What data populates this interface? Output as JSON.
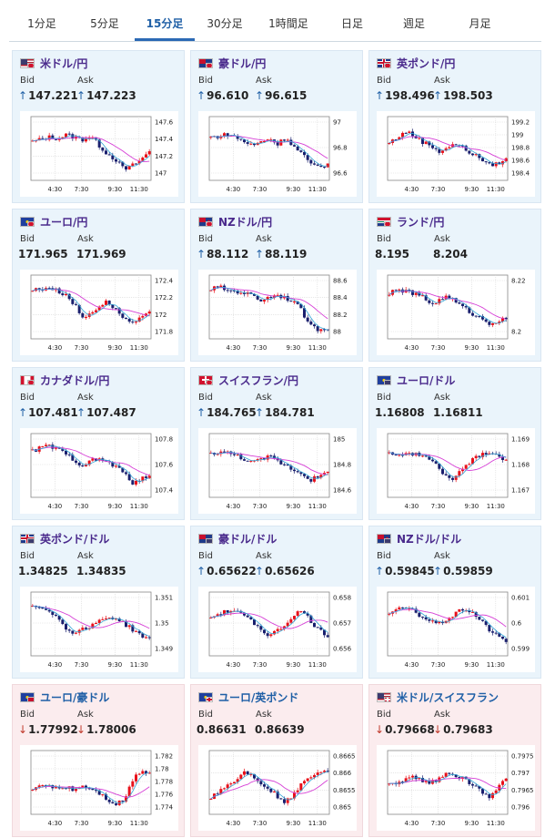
{
  "tabs": [
    {
      "label": "1分足",
      "active": false
    },
    {
      "label": "5分足",
      "active": false
    },
    {
      "label": "15分足",
      "active": true
    },
    {
      "label": "30分足",
      "active": false
    },
    {
      "label": "1時間足",
      "active": false
    },
    {
      "label": "日足",
      "active": false
    },
    {
      "label": "週足",
      "active": false
    },
    {
      "label": "月足",
      "active": false
    }
  ],
  "labels": {
    "bid": "Bid",
    "ask": "Ask"
  },
  "colors": {
    "up_candle": "#e8101a",
    "down_candle": "#1a1f6e",
    "moving_average": "#d63fd6",
    "short_average": "#33a6d6",
    "up_arrow": "#1f5fa6",
    "down_arrow": "#c0392b"
  },
  "pairs": [
    {
      "name": "米ドル/円",
      "flags": [
        "us",
        "jp"
      ],
      "bid": "147.221",
      "ask": "147.223",
      "bid_dir": "up",
      "ask_dir": "up",
      "y_ticks": [
        "147.6",
        "147.4",
        "147.2",
        "147"
      ],
      "x_ticks": [
        "4:30",
        "7:30",
        "9:30",
        "11:30"
      ],
      "trend": [
        0.62,
        0.66,
        0.7,
        0.68,
        0.74,
        0.7,
        0.66,
        0.72,
        0.55,
        0.4,
        0.3,
        0.12,
        0.2,
        0.3,
        0.45
      ]
    },
    {
      "name": "豪ドル/円",
      "flags": [
        "au",
        "jp"
      ],
      "bid": "96.610",
      "ask": "96.615",
      "bid_dir": "up",
      "ask_dir": "up",
      "y_ticks": [
        "97",
        "96.8",
        "96.6"
      ],
      "x_ticks": [
        "4:30",
        "7:30",
        "9:30",
        "11:30"
      ],
      "trend": [
        0.7,
        0.72,
        0.75,
        0.7,
        0.62,
        0.55,
        0.62,
        0.68,
        0.58,
        0.7,
        0.52,
        0.4,
        0.2,
        0.18,
        0.22
      ]
    },
    {
      "name": "英ポンド/円",
      "flags": [
        "uk",
        "jp"
      ],
      "bid": "198.496",
      "ask": "198.503",
      "bid_dir": "up",
      "ask_dir": "up",
      "y_ticks": [
        "199.2",
        "199",
        "198.8",
        "198.6",
        "198.4"
      ],
      "x_ticks": [
        "4:30",
        "7:30",
        "9:30",
        "11:30"
      ],
      "trend": [
        0.6,
        0.7,
        0.8,
        0.72,
        0.62,
        0.55,
        0.45,
        0.52,
        0.58,
        0.5,
        0.4,
        0.32,
        0.2,
        0.24,
        0.3
      ]
    },
    {
      "name": "ユーロ/円",
      "flags": [
        "eu",
        "jp"
      ],
      "bid": "171.965",
      "ask": "171.969",
      "bid_dir": "none",
      "ask_dir": "none",
      "y_ticks": [
        "172.4",
        "172.2",
        "172",
        "171.8"
      ],
      "x_ticks": [
        "4:30",
        "7:30",
        "9:30",
        "11:30"
      ],
      "trend": [
        0.8,
        0.82,
        0.85,
        0.78,
        0.72,
        0.55,
        0.3,
        0.4,
        0.52,
        0.6,
        0.45,
        0.3,
        0.2,
        0.3,
        0.38
      ]
    },
    {
      "name": "NZドル/円",
      "flags": [
        "nz",
        "jp"
      ],
      "bid": "88.112",
      "ask": "88.119",
      "bid_dir": "up",
      "ask_dir": "up",
      "y_ticks": [
        "88.6",
        "88.4",
        "88.2",
        "88"
      ],
      "x_ticks": [
        "4:30",
        "7:30",
        "9:30",
        "11:30"
      ],
      "trend": [
        0.82,
        0.85,
        0.8,
        0.78,
        0.75,
        0.7,
        0.62,
        0.68,
        0.72,
        0.66,
        0.6,
        0.4,
        0.15,
        0.1,
        0.12
      ]
    },
    {
      "name": "ランド/円",
      "flags": [
        "za",
        "jp"
      ],
      "bid": "8.195",
      "ask": "8.204",
      "bid_dir": "none",
      "ask_dir": "none",
      "y_ticks": [
        "8.22",
        "8.2"
      ],
      "x_ticks": [
        "4:30",
        "7:30",
        "9:30",
        "11:30"
      ],
      "trend": [
        0.75,
        0.78,
        0.8,
        0.72,
        0.68,
        0.55,
        0.62,
        0.7,
        0.58,
        0.48,
        0.38,
        0.3,
        0.22,
        0.25,
        0.3
      ]
    },
    {
      "name": "カナダドル/円",
      "flags": [
        "ca",
        "jp"
      ],
      "bid": "107.481",
      "ask": "107.487",
      "bid_dir": "up",
      "ask_dir": "up",
      "y_ticks": [
        "107.8",
        "107.6",
        "107.4"
      ],
      "x_ticks": [
        "4:30",
        "7:30",
        "9:30",
        "11:30"
      ],
      "trend": [
        0.75,
        0.82,
        0.85,
        0.78,
        0.7,
        0.6,
        0.5,
        0.58,
        0.62,
        0.55,
        0.48,
        0.35,
        0.2,
        0.25,
        0.32
      ]
    },
    {
      "name": "スイスフラン/円",
      "flags": [
        "ch",
        "jp"
      ],
      "bid": "184.765",
      "ask": "184.781",
      "bid_dir": "up",
      "ask_dir": "up",
      "y_ticks": [
        "185",
        "184.8",
        "184.6"
      ],
      "x_ticks": [
        "4:30",
        "7:30",
        "9:30",
        "11:30"
      ],
      "trend": [
        0.7,
        0.75,
        0.72,
        0.68,
        0.62,
        0.55,
        0.6,
        0.66,
        0.58,
        0.5,
        0.42,
        0.35,
        0.25,
        0.3,
        0.38
      ]
    },
    {
      "name": "ユーロ/ドル",
      "flags": [
        "eu",
        "us"
      ],
      "bid": "1.16808",
      "ask": "1.16811",
      "bid_dir": "none",
      "ask_dir": "none",
      "y_ticks": [
        "1.169",
        "1.168",
        "1.167"
      ],
      "x_ticks": [
        "4:30",
        "7:30",
        "9:30",
        "11:30"
      ],
      "trend": [
        0.72,
        0.7,
        0.68,
        0.72,
        0.66,
        0.6,
        0.45,
        0.25,
        0.3,
        0.48,
        0.6,
        0.7,
        0.75,
        0.68,
        0.58
      ]
    },
    {
      "name": "英ポンド/ドル",
      "flags": [
        "uk",
        "us"
      ],
      "bid": "1.34825",
      "ask": "1.34835",
      "bid_dir": "none",
      "ask_dir": "none",
      "y_ticks": [
        "1.351",
        "1.35",
        "1.349"
      ],
      "x_ticks": [
        "4:30",
        "7:30",
        "9:30",
        "11:30"
      ],
      "trend": [
        0.82,
        0.8,
        0.75,
        0.6,
        0.42,
        0.35,
        0.4,
        0.48,
        0.55,
        0.62,
        0.6,
        0.5,
        0.4,
        0.3,
        0.22
      ]
    },
    {
      "name": "豪ドル/ドル",
      "flags": [
        "au",
        "us"
      ],
      "bid": "0.65622",
      "ask": "0.65626",
      "bid_dir": "up",
      "ask_dir": "up",
      "y_ticks": [
        "0.658",
        "0.657",
        "0.656"
      ],
      "x_ticks": [
        "4:30",
        "7:30",
        "9:30",
        "11:30"
      ],
      "trend": [
        0.62,
        0.68,
        0.72,
        0.75,
        0.62,
        0.55,
        0.4,
        0.3,
        0.38,
        0.5,
        0.68,
        0.72,
        0.55,
        0.38,
        0.3
      ]
    },
    {
      "name": "NZドル/ドル",
      "flags": [
        "nz",
        "us"
      ],
      "bid": "0.59845",
      "ask": "0.59859",
      "bid_dir": "up",
      "ask_dir": "up",
      "y_ticks": [
        "0.601",
        "0.6",
        "0.599"
      ],
      "x_ticks": [
        "4:30",
        "7:30",
        "9:30",
        "11:30"
      ],
      "trend": [
        0.7,
        0.75,
        0.78,
        0.72,
        0.62,
        0.55,
        0.5,
        0.6,
        0.68,
        0.78,
        0.7,
        0.55,
        0.4,
        0.28,
        0.2
      ]
    },
    {
      "name": "ユーロ/豪ドル",
      "flags": [
        "eu",
        "au"
      ],
      "bid": "1.77992",
      "ask": "1.78006",
      "bid_dir": "down",
      "ask_dir": "down",
      "y_ticks": [
        "1.782",
        "1.78",
        "1.778",
        "1.776",
        "1.774"
      ],
      "x_ticks": [
        "4:30",
        "7:30",
        "9:30",
        "11:30"
      ],
      "trend": [
        0.4,
        0.42,
        0.45,
        0.4,
        0.42,
        0.38,
        0.44,
        0.4,
        0.32,
        0.2,
        0.12,
        0.2,
        0.55,
        0.72,
        0.68
      ]
    },
    {
      "name": "ユーロ/英ポンド",
      "flags": [
        "eu",
        "uk"
      ],
      "bid": "0.86631",
      "ask": "0.86639",
      "bid_dir": "none",
      "ask_dir": "none",
      "y_ticks": [
        "0.8665",
        "0.866",
        "0.8655",
        "0.865"
      ],
      "x_ticks": [
        "4:30",
        "7:30",
        "9:30",
        "11:30"
      ],
      "trend": [
        0.25,
        0.35,
        0.45,
        0.55,
        0.68,
        0.62,
        0.5,
        0.38,
        0.25,
        0.15,
        0.3,
        0.48,
        0.62,
        0.72,
        0.7
      ]
    },
    {
      "name": "米ドル/スイスフラン",
      "flags": [
        "us",
        "ch"
      ],
      "bid": "0.79668",
      "ask": "0.79683",
      "bid_dir": "down",
      "ask_dir": "down",
      "y_ticks": [
        "0.7975",
        "0.797",
        "0.7965",
        "0.796"
      ],
      "x_ticks": [
        "4:30",
        "7:30",
        "9:30",
        "11:30"
      ],
      "trend": [
        0.45,
        0.5,
        0.55,
        0.6,
        0.52,
        0.48,
        0.58,
        0.7,
        0.62,
        0.55,
        0.45,
        0.35,
        0.25,
        0.4,
        0.55
      ]
    }
  ]
}
